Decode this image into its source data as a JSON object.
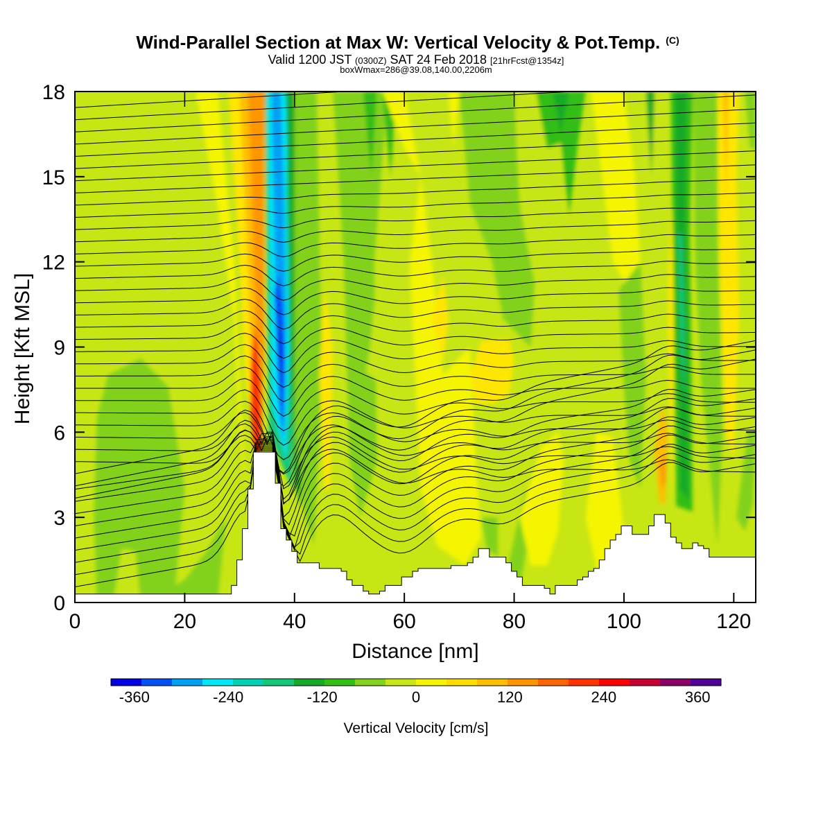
{
  "chart_data": {
    "type": "heatmap",
    "title": "Wind-Parallel Section at Max W: Vertical Velocity & Pot.Temp.",
    "title_mark": "(C)",
    "subtitle": {
      "main": "Valid 1200 JST ",
      "utc": "(0300Z)",
      "date": " SAT 24 Feb 2018 ",
      "fcst": "[21hrFcst@1354z]"
    },
    "box_note": "boxWmax=286@39.08,140.00,2206m",
    "xlabel": "Distance [nm]",
    "ylabel": "Height [Kft MSL]",
    "xlim": [
      0,
      124
    ],
    "ylim": [
      0,
      18
    ],
    "x_ticks": [
      0,
      20,
      40,
      60,
      80,
      100,
      120
    ],
    "y_ticks": [
      0,
      3,
      6,
      9,
      12,
      15,
      18
    ],
    "colorbar": {
      "label": "Vertical Velocity [cm/s]",
      "tick_labels": [
        "-360",
        "-240",
        "-120",
        "0",
        "120",
        "240",
        "360"
      ],
      "tick_values": [
        -360,
        -240,
        -120,
        0,
        120,
        240,
        360
      ],
      "range": [
        -390,
        390
      ],
      "colors": [
        "#0000e6",
        "#0050f5",
        "#00a0f5",
        "#00e6f5",
        "#00d2b4",
        "#14c878",
        "#14aa28",
        "#32be14",
        "#82d21e",
        "#c8e614",
        "#f5f500",
        "#ffdc00",
        "#ffbe00",
        "#ff9600",
        "#ff6400",
        "#ff3200",
        "#ff0000",
        "#c80032",
        "#8c0064",
        "#500096"
      ]
    },
    "velocity_bands": [
      {
        "x": [
          0,
          124
        ],
        "band": "weak-ascent",
        "value": 40
      },
      {
        "x": [
          4,
          18
        ],
        "y": [
          0.3,
          8.6
        ],
        "band": "weak-descent",
        "value": -30
      },
      {
        "x": [
          31,
          34
        ],
        "y": [
          4.5,
          10
        ],
        "band": "strong-ascent",
        "value": 290
      },
      {
        "x": [
          35,
          39
        ],
        "y": [
          5,
          18
        ],
        "band": "strong-descent",
        "value": -330
      },
      {
        "x": [
          109,
          112
        ],
        "y": [
          3,
          18
        ],
        "band": "moderate-descent",
        "value": -90
      }
    ],
    "terrain_nm": [
      0,
      1,
      2,
      3,
      4,
      5,
      6,
      7,
      8,
      9,
      10,
      11,
      12,
      13,
      14,
      15,
      16,
      17,
      18,
      19,
      20,
      21,
      22,
      23,
      24,
      25,
      26,
      27,
      28,
      29,
      30,
      31,
      32,
      33,
      34,
      35,
      36,
      37,
      38,
      39,
      40,
      41,
      42,
      43,
      44,
      45,
      46,
      47,
      48,
      49,
      50,
      51,
      52,
      53,
      54,
      55,
      56,
      57,
      58,
      59,
      60,
      61,
      62,
      63,
      64,
      65,
      66,
      67,
      68,
      69,
      70,
      71,
      72,
      73,
      74,
      75,
      76,
      77,
      78,
      79,
      80,
      81,
      82,
      83,
      84,
      85,
      86,
      87,
      88,
      89,
      90,
      91,
      92,
      93,
      94,
      95,
      96,
      97,
      98,
      99,
      100,
      101,
      102,
      103,
      104,
      105,
      106,
      107,
      108,
      109,
      110,
      111,
      112,
      113,
      114,
      115,
      116,
      117,
      118,
      119,
      120,
      121,
      122,
      123,
      124
    ],
    "terrain_kft": [
      0.3,
      0.3,
      0.3,
      0.3,
      0.3,
      0.3,
      0.3,
      0.3,
      0.3,
      0.3,
      0.3,
      0.3,
      0.3,
      0.3,
      0.3,
      0.3,
      0.3,
      0.3,
      0.3,
      0.3,
      0.3,
      0.3,
      0.3,
      0.3,
      0.3,
      0.3,
      0.3,
      0.3,
      0.3,
      0.6,
      1.5,
      2.6,
      4,
      5.3,
      5.3,
      5.3,
      5.3,
      4.2,
      2.6,
      2.2,
      1.8,
      1.4,
      1.4,
      1.4,
      1.4,
      1.2,
      1.2,
      1.2,
      1.2,
      1.1,
      0.8,
      0.6,
      0.6,
      0.4,
      0.3,
      0.3,
      0.4,
      0.6,
      0.6,
      0.6,
      0.9,
      0.9,
      1.1,
      1.2,
      1.2,
      1.2,
      1.2,
      1.2,
      1.2,
      1.3,
      1.3,
      1.3,
      1.4,
      1.6,
      1.9,
      1.9,
      1.6,
      1.6,
      1.6,
      1.4,
      1.1,
      0.9,
      0.6,
      0.6,
      0.6,
      0.6,
      0.5,
      0.3,
      0.6,
      0.6,
      0.6,
      0.6,
      0.8,
      0.9,
      1.1,
      1.2,
      1.5,
      1.9,
      2.2,
      2.4,
      2.7,
      2.7,
      2.4,
      2.4,
      2.4,
      2.7,
      3.1,
      3.1,
      2.8,
      2.3,
      2.1,
      1.9,
      1.9,
      2.1,
      2.0,
      1.9,
      1.6,
      1.6,
      1.6,
      1.6,
      1.6,
      1.6,
      1.6,
      1.6,
      1.6
    ]
  }
}
